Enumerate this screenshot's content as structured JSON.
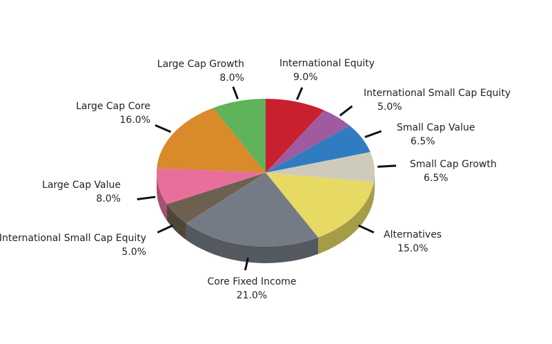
{
  "chart_data": {
    "type": "pie",
    "categories": [
      "International Equity",
      "International Small Cap Equity",
      "Small Cap Value",
      "Small Cap Growth",
      "Alternatives",
      "Core Fixed Income",
      "International Small Cap Equity",
      "Large Cap Value",
      "Large Cap Core",
      "Large Cap Growth"
    ],
    "values": [
      9.0,
      5.0,
      6.5,
      6.5,
      15.0,
      21.0,
      5.0,
      8.0,
      16.0,
      8.0
    ],
    "value_labels": [
      "9.0%",
      "5.0%",
      "6.5%",
      "6.5%",
      "15.0%",
      "21.0%",
      "5.0%",
      "8.0%",
      "16.0%",
      "8.0%"
    ],
    "colors": [
      "#c8202f",
      "#a05a9f",
      "#2f7cc1",
      "#cfcbbb",
      "#e6d964",
      "#757b85",
      "#6e604f",
      "#e86f9c",
      "#d98a2b",
      "#5fb35a"
    ]
  }
}
